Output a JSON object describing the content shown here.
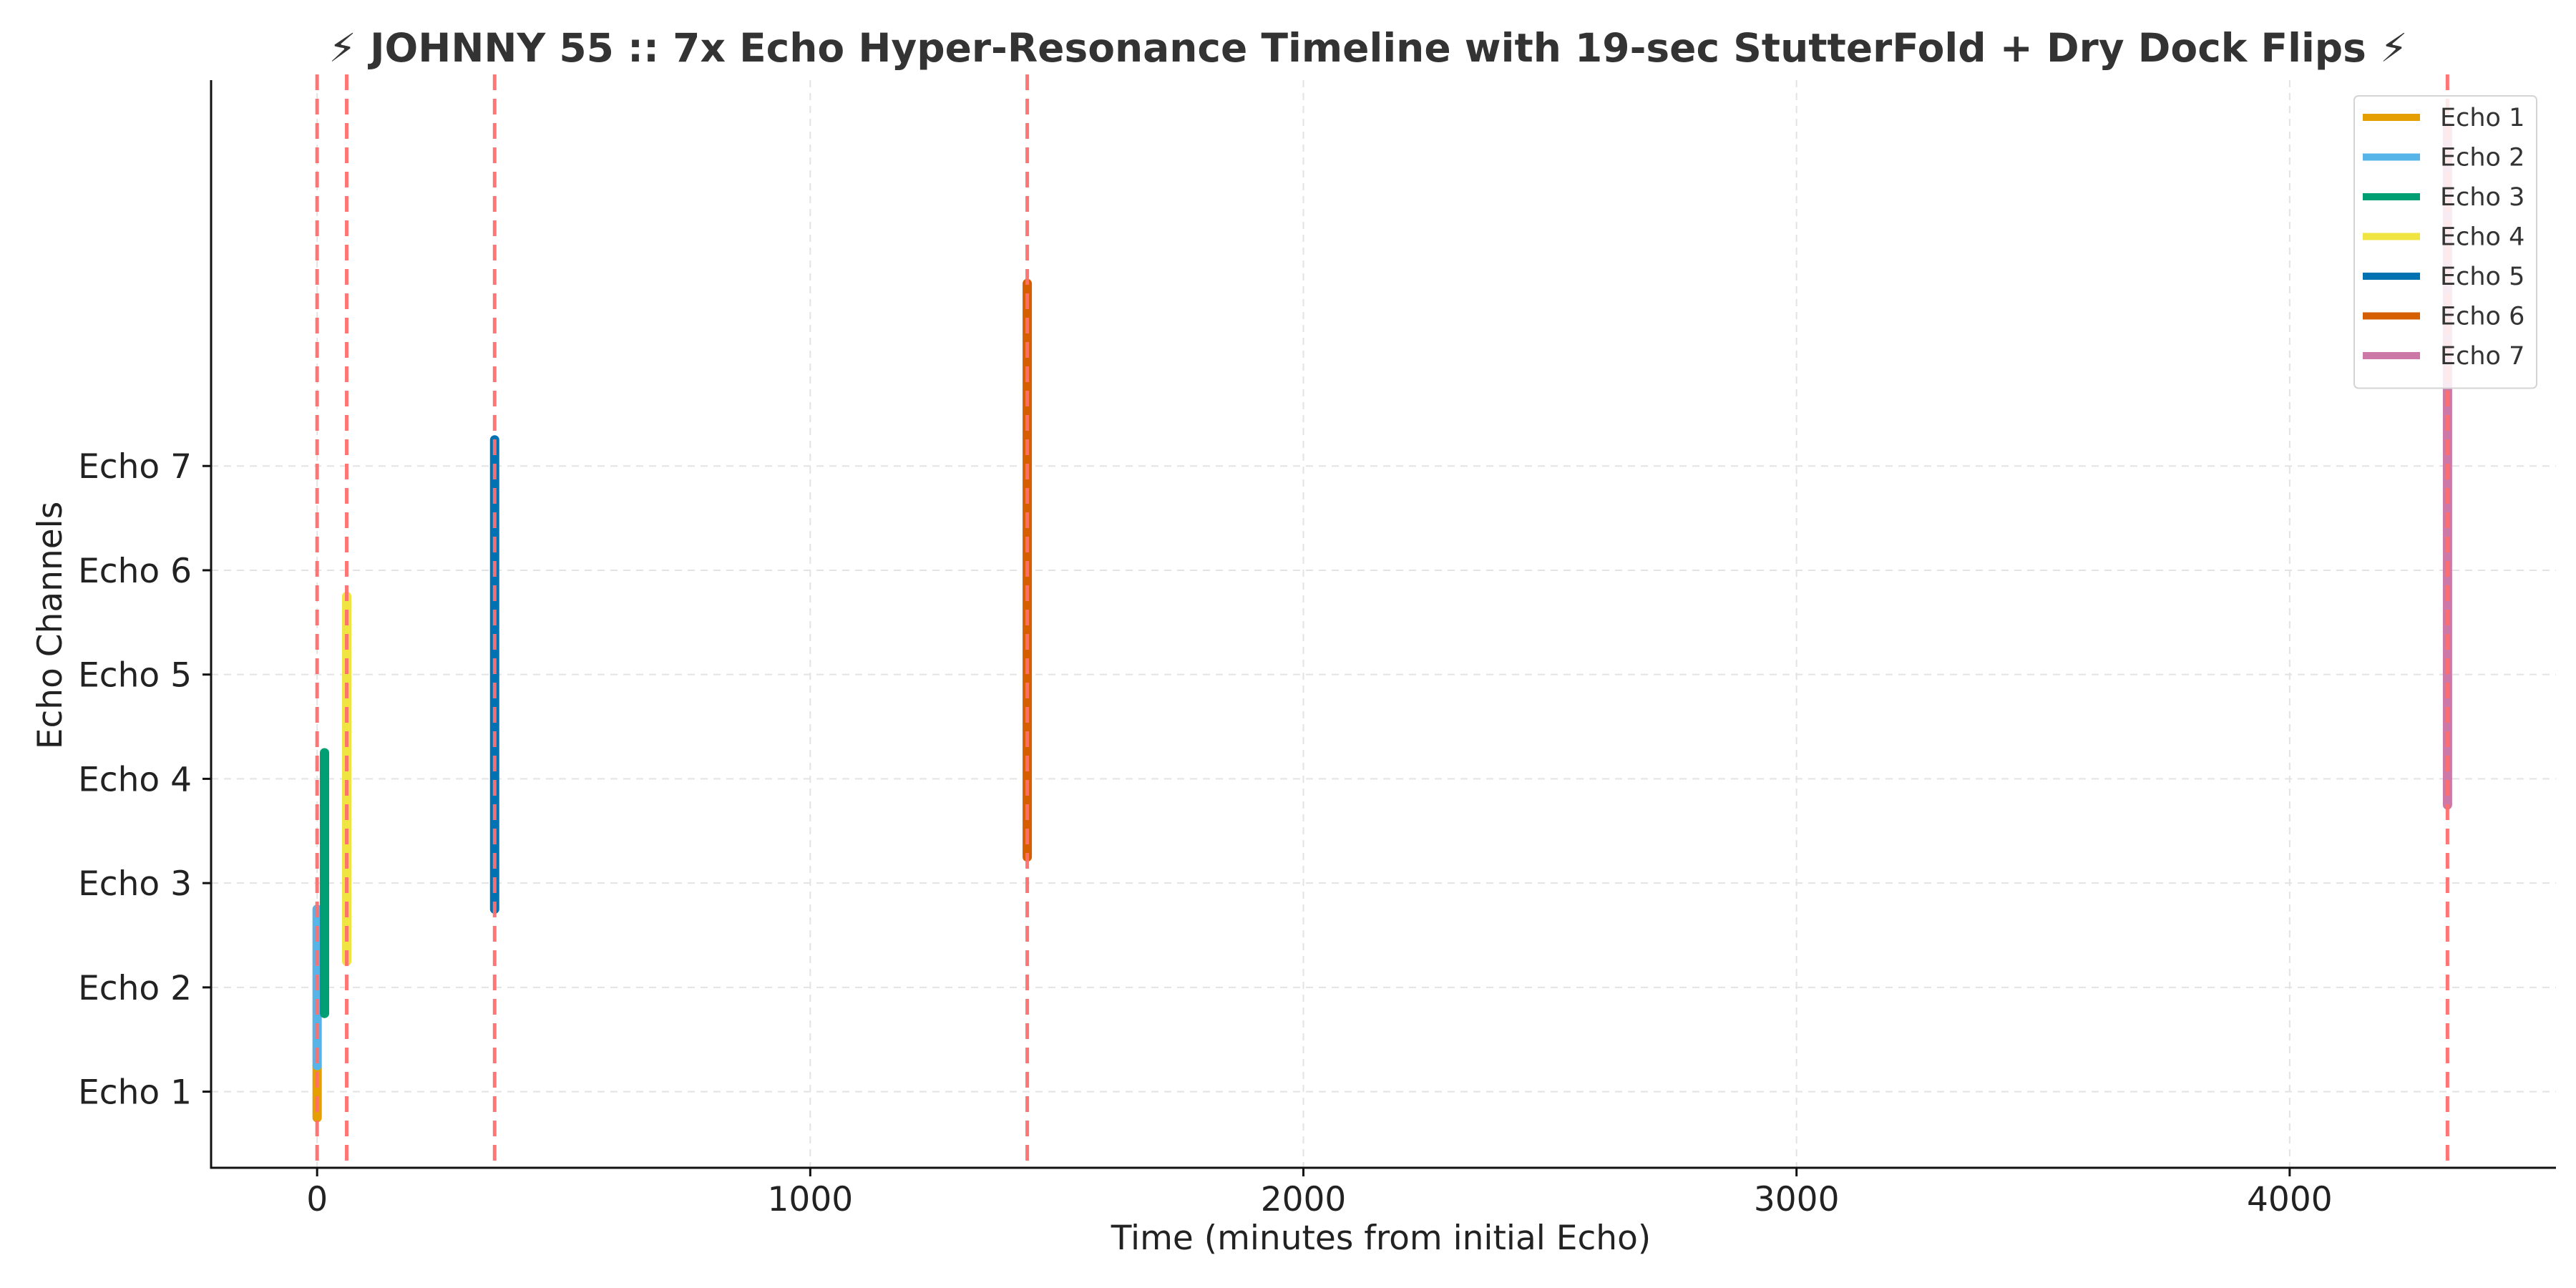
{
  "chart_data": {
    "type": "line",
    "title": "⚡ JOHNNY 55 :: 7x Echo Hyper-Resonance Timeline with 19-sec StutterFold + Dry Dock Flips ⚡",
    "xlabel": "Time (minutes from initial Echo)",
    "ylabel": "Echo Channels",
    "xlim": [
      -215,
      4540
    ],
    "ylim": [
      0.27,
      10.7
    ],
    "x_ticks": [
      0,
      1000,
      2000,
      3000,
      4000
    ],
    "y_ticks": [
      {
        "value": 1,
        "label": "Echo 1"
      },
      {
        "value": 2,
        "label": "Echo 2"
      },
      {
        "value": 3,
        "label": "Echo 3"
      },
      {
        "value": 4,
        "label": "Echo 4"
      },
      {
        "value": 5,
        "label": "Echo 5"
      },
      {
        "value": 6,
        "label": "Echo 6"
      },
      {
        "value": 7,
        "label": "Echo 7"
      }
    ],
    "grid": true,
    "legend_position": "top-right",
    "series": [
      {
        "name": "Echo 1",
        "color": "#E69F00",
        "x": 0,
        "y_range": [
          0.75,
          1.25
        ]
      },
      {
        "name": "Echo 2",
        "color": "#56B4E9",
        "x": 0,
        "y_range": [
          1.25,
          2.75
        ]
      },
      {
        "name": "Echo 3",
        "color": "#009E73",
        "x": 15,
        "y_range": [
          1.75,
          4.25
        ]
      },
      {
        "name": "Echo 4",
        "color": "#F0E442",
        "x": 60,
        "y_range": [
          2.25,
          5.75
        ]
      },
      {
        "name": "Echo 5",
        "color": "#0072B2",
        "x": 360,
        "y_range": [
          2.75,
          7.25
        ]
      },
      {
        "name": "Echo 6",
        "color": "#D55E00",
        "x": 1440,
        "y_range": [
          3.25,
          8.75
        ]
      },
      {
        "name": "Echo 7",
        "color": "#CC79A7",
        "x": 4320,
        "y_range": [
          3.75,
          10.25
        ]
      }
    ],
    "markers": {
      "x": [
        0,
        60,
        360,
        1440,
        4320
      ],
      "color": "#FF6F6F",
      "style": "dashed"
    }
  }
}
